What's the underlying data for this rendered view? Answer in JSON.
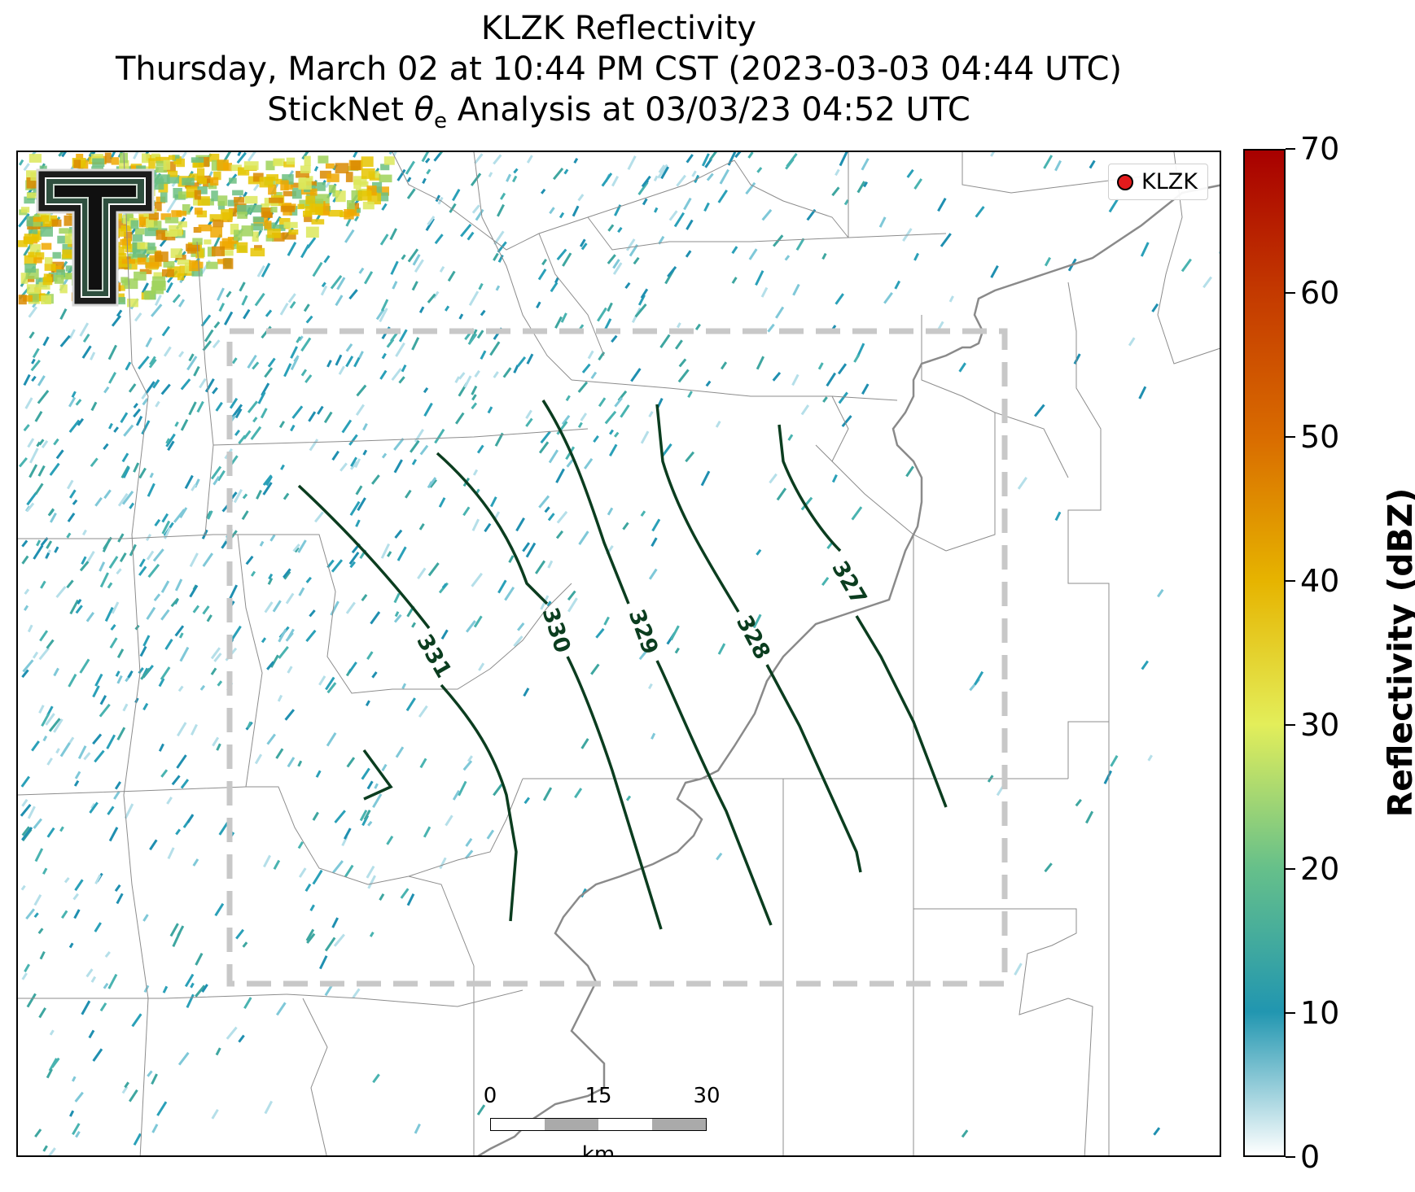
{
  "title": {
    "line1": "KLZK Reflectivity",
    "line2": "Thursday, March 02 at 10:44 PM CST (2023-03-03 04:44 UTC)",
    "line3_prefix": "StickNet ",
    "line3_theta": "θ",
    "line3_sub": "e",
    "line3_suffix": " Analysis at 03/03/23 04:52 UTC"
  },
  "legend": {
    "label": "KLZK",
    "marker_color": "#e31a1c"
  },
  "logo": {
    "icon": "texas-tech-double-t-logo"
  },
  "scale_bar": {
    "ticks": [
      "0",
      "15",
      "30"
    ],
    "unit": "km"
  },
  "colorbar": {
    "title": "Reflectivity (dBZ)",
    "min": 0,
    "max": 70,
    "ticks": [
      "0",
      "10",
      "20",
      "30",
      "40",
      "50",
      "60",
      "70"
    ],
    "colors": [
      "#ffffff",
      "#2196b0",
      "#66c08a",
      "#e3ee5a",
      "#e6b400",
      "#d96c00",
      "#c43a00",
      "#a80000"
    ]
  },
  "contours": {
    "color": "#0b3d1f",
    "labels": [
      "331",
      "330",
      "329",
      "328",
      "327"
    ]
  },
  "analysis_domain": {
    "style": "dashed",
    "color": "#c8c8c8"
  }
}
